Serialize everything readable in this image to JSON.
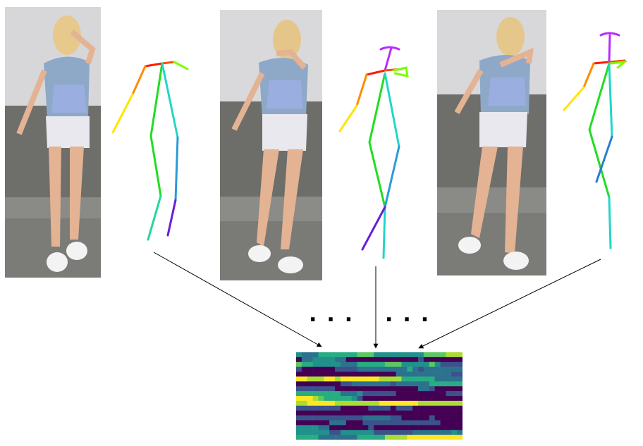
{
  "frames": [
    {
      "id": "frame-1",
      "icon": "person-photo"
    },
    {
      "id": "frame-2",
      "icon": "person-photo"
    },
    {
      "id": "frame-3",
      "icon": "person-photo"
    }
  ],
  "ellipsis_left": "...",
  "ellipsis_right": "...",
  "colors": {
    "limb_red": "#ff1a00",
    "limb_orange": "#ff8c00",
    "limb_yellow": "#ffe600",
    "limb_green": "#22dd22",
    "limb_cyan": "#22d6c8",
    "limb_blue": "#2a7bd6",
    "limb_purple": "#6a1fd6",
    "head_magenta": "#b62cff",
    "arrow": "#000000",
    "heat_low": "#440154",
    "heat_mid": "#21918c",
    "heat_high": "#fde725"
  },
  "heatmap": {
    "rows": 18,
    "cols": 30
  }
}
